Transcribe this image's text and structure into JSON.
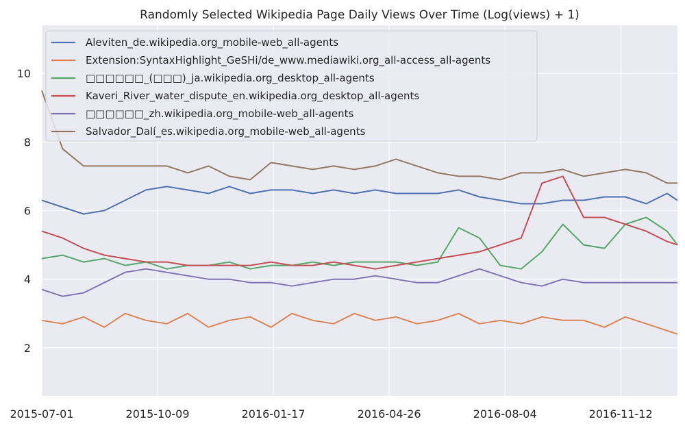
{
  "chart_data": {
    "type": "line",
    "title": "Randomly Selected Wikipedia Page Daily Views Over Time (Log(views) + 1)",
    "xlabel": "",
    "ylabel": "",
    "x_ticks": [
      "2015-07-01",
      "2015-10-09",
      "2016-01-17",
      "2016-04-26",
      "2016-08-04",
      "2016-11-12"
    ],
    "x_range": [
      "2015-07-01",
      "2016-12-31"
    ],
    "y_ticks": [
      2,
      4,
      6,
      8,
      10
    ],
    "ylim": [
      0.6,
      11.4
    ],
    "grid": true,
    "legend_position": "upper-left",
    "x": [
      "2015-07-01",
      "2015-07-19",
      "2015-08-06",
      "2015-08-24",
      "2015-09-11",
      "2015-09-29",
      "2015-10-17",
      "2015-11-04",
      "2015-11-22",
      "2015-12-10",
      "2015-12-28",
      "2016-01-15",
      "2016-02-02",
      "2016-02-20",
      "2016-03-09",
      "2016-03-27",
      "2016-04-14",
      "2016-05-02",
      "2016-05-20",
      "2016-06-07",
      "2016-06-25",
      "2016-07-13",
      "2016-07-31",
      "2016-08-18",
      "2016-09-05",
      "2016-09-23",
      "2016-10-11",
      "2016-10-29",
      "2016-11-16",
      "2016-12-04",
      "2016-12-22",
      "2016-12-31"
    ],
    "series": [
      {
        "name": "Aleviten_de.wikipedia.org_mobile-web_all-agents",
        "color": "#4c72b0",
        "values": [
          6.3,
          6.1,
          5.9,
          6.0,
          6.3,
          6.6,
          6.7,
          6.6,
          6.5,
          6.7,
          6.5,
          6.6,
          6.6,
          6.5,
          6.6,
          6.5,
          6.6,
          6.5,
          6.5,
          6.5,
          6.6,
          6.4,
          6.3,
          6.2,
          6.2,
          6.3,
          6.3,
          6.4,
          6.4,
          6.2,
          6.5,
          6.3
        ]
      },
      {
        "name": "Extension:SyntaxHighlight_GeSHi/de_www.mediawiki.org_all-access_all-agents",
        "color": "#dd8452",
        "values": [
          2.8,
          2.7,
          2.9,
          2.6,
          3.0,
          2.8,
          2.7,
          3.0,
          2.6,
          2.8,
          2.9,
          2.6,
          3.0,
          2.8,
          2.7,
          3.0,
          2.8,
          2.9,
          2.7,
          2.8,
          3.0,
          2.7,
          2.8,
          2.7,
          2.9,
          2.8,
          2.8,
          2.6,
          2.9,
          2.7,
          2.5,
          2.4
        ]
      },
      {
        "name": "□□□□□□_(□□□)_ja.wikipedia.org_desktop_all-agents",
        "color": "#55a868",
        "values": [
          4.6,
          4.7,
          4.5,
          4.6,
          4.4,
          4.5,
          4.3,
          4.4,
          4.4,
          4.5,
          4.3,
          4.4,
          4.4,
          4.5,
          4.4,
          4.5,
          4.5,
          4.5,
          4.4,
          4.5,
          5.5,
          5.2,
          4.4,
          4.3,
          4.8,
          5.6,
          5.0,
          4.9,
          5.6,
          5.8,
          5.4,
          5.0
        ]
      },
      {
        "name": "Kaveri_River_water_dispute_en.wikipedia.org_desktop_all-agents",
        "color": "#c44e52",
        "values": [
          5.4,
          5.2,
          4.9,
          4.7,
          4.6,
          4.5,
          4.5,
          4.4,
          4.4,
          4.4,
          4.4,
          4.5,
          4.4,
          4.4,
          4.5,
          4.4,
          4.3,
          4.4,
          4.5,
          4.6,
          4.7,
          4.8,
          5.0,
          5.2,
          6.8,
          7.0,
          5.8,
          5.8,
          5.6,
          5.4,
          5.1,
          5.0
        ]
      },
      {
        "name": "□□□□□□_zh.wikipedia.org_mobile-web_all-agents",
        "color": "#8172b3",
        "values": [
          3.7,
          3.5,
          3.6,
          3.9,
          4.2,
          4.3,
          4.2,
          4.1,
          4.0,
          4.0,
          3.9,
          3.9,
          3.8,
          3.9,
          4.0,
          4.0,
          4.1,
          4.0,
          3.9,
          3.9,
          4.1,
          4.3,
          4.1,
          3.9,
          3.8,
          4.0,
          3.9,
          3.9,
          3.9,
          3.9,
          3.9,
          3.9
        ]
      },
      {
        "name": "Salvador_Dalí_es.wikipedia.org_mobile-web_all-agents",
        "color": "#937860",
        "values": [
          9.5,
          7.8,
          7.3,
          7.3,
          7.3,
          7.3,
          7.3,
          7.1,
          7.3,
          7.0,
          6.9,
          7.4,
          7.3,
          7.2,
          7.3,
          7.2,
          7.3,
          7.5,
          7.3,
          7.1,
          7.0,
          7.0,
          6.9,
          7.1,
          7.1,
          7.2,
          7.0,
          7.1,
          7.2,
          7.1,
          6.8,
          6.8
        ]
      }
    ]
  }
}
